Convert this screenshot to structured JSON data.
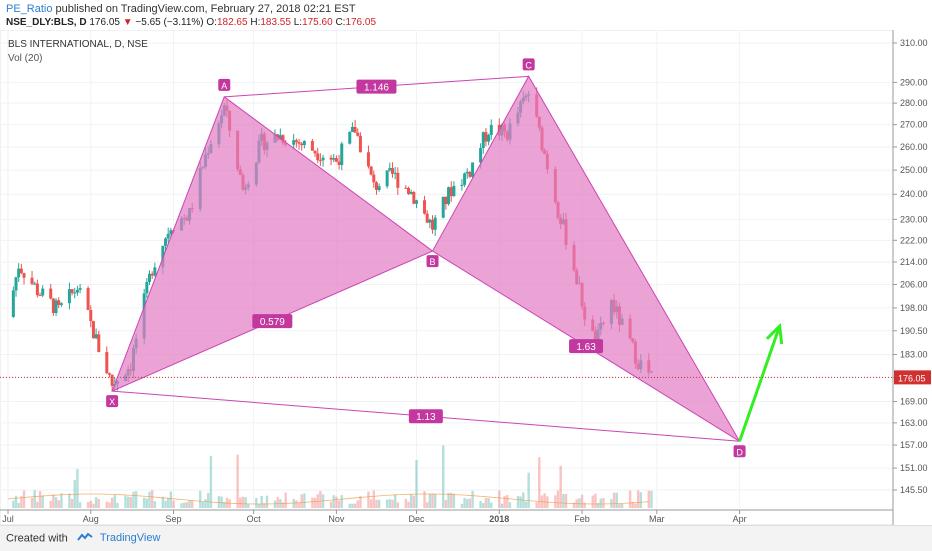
{
  "header": {
    "user": "PE_Ratio",
    "published_text": "published on TradingView.com, February 27, 2018 02:21 EST",
    "symbol": "NSE_DLY:BLS, D",
    "last": "176.05",
    "change": "−5.65 (−3.11%)",
    "o_label": "O:",
    "o_value": "182.65",
    "h_label": "H:",
    "h_value": "183.55",
    "l_label": "L:",
    "l_value": "175.60",
    "c_label": "C:",
    "c_value": "176.05"
  },
  "chart_title": "BLS INTERNATIONAL, D, NSE",
  "volume_label": "Vol (20)",
  "footer": {
    "created_with": "Created with",
    "brand": "TradingView"
  },
  "colors": {
    "up": "#26a69a",
    "down": "#ef5350",
    "pattern_fill": "#e27cc3",
    "pattern_line": "#cc44b4",
    "arrow": "#33ee22",
    "price_line": "#d03030"
  },
  "chart_data": {
    "type": "candlestick",
    "title": "BLS INTERNATIONAL, D, NSE",
    "x_ticks": [
      "Jul",
      "Aug",
      "Sep",
      "Oct",
      "Nov",
      "Dec",
      "2018",
      "Feb",
      "Mar",
      "Apr"
    ],
    "y_ticks": [
      310.0,
      290.0,
      280.0,
      270.0,
      260.0,
      250.0,
      240.0,
      230.0,
      222.0,
      214.0,
      206.0,
      198.0,
      190.5,
      183.0,
      176.0,
      169.0,
      163.0,
      157.0,
      151.0,
      145.5
    ],
    "y_scale": "log",
    "last_price": "176.05",
    "pattern": {
      "points": [
        {
          "label": "X",
          "date": "2017-08-09",
          "price": 172
        },
        {
          "label": "A",
          "date": "2017-09-20",
          "price": 283
        },
        {
          "label": "B",
          "date": "2017-12-07",
          "price": 218
        },
        {
          "label": "C",
          "date": "2018-01-12",
          "price": 293
        },
        {
          "label": "D",
          "date": "2018-04-01",
          "price": 158
        }
      ],
      "ratios": [
        {
          "label": "0.579",
          "between": "X-A-B"
        },
        {
          "label": "1.146",
          "between": "A-B-C"
        },
        {
          "label": "1.63",
          "between": "B-C-D"
        },
        {
          "label": "1.13",
          "between": "X-A-D"
        }
      ]
    },
    "projection": {
      "from": {
        "date": "2018-04-01",
        "price": 158
      },
      "to": {
        "date": "2018-04-16",
        "price": 192
      }
    },
    "price_path": [
      {
        "date": "2017-07-01",
        "price": 195
      },
      {
        "date": "2017-07-05",
        "price": 213
      },
      {
        "date": "2017-07-12",
        "price": 204
      },
      {
        "date": "2017-07-20",
        "price": 197
      },
      {
        "date": "2017-07-27",
        "price": 205
      },
      {
        "date": "2017-08-04",
        "price": 185
      },
      {
        "date": "2017-08-09",
        "price": 174
      },
      {
        "date": "2017-08-16",
        "price": 180
      },
      {
        "date": "2017-08-24",
        "price": 212
      },
      {
        "date": "2017-08-31",
        "price": 228
      },
      {
        "date": "2017-09-07",
        "price": 232
      },
      {
        "date": "2017-09-14",
        "price": 260
      },
      {
        "date": "2017-09-20",
        "price": 278
      },
      {
        "date": "2017-09-27",
        "price": 242
      },
      {
        "date": "2017-10-04",
        "price": 262
      },
      {
        "date": "2017-10-11",
        "price": 265
      },
      {
        "date": "2017-10-18",
        "price": 262
      },
      {
        "date": "2017-10-25",
        "price": 258
      },
      {
        "date": "2017-11-01",
        "price": 254
      },
      {
        "date": "2017-11-08",
        "price": 268
      },
      {
        "date": "2017-11-15",
        "price": 243
      },
      {
        "date": "2017-11-22",
        "price": 248
      },
      {
        "date": "2017-11-29",
        "price": 241
      },
      {
        "date": "2017-12-07",
        "price": 227
      },
      {
        "date": "2017-12-14",
        "price": 242
      },
      {
        "date": "2017-12-21",
        "price": 250
      },
      {
        "date": "2017-12-28",
        "price": 268
      },
      {
        "date": "2018-01-04",
        "price": 266
      },
      {
        "date": "2018-01-12",
        "price": 285
      },
      {
        "date": "2018-01-18",
        "price": 257
      },
      {
        "date": "2018-01-23",
        "price": 234
      },
      {
        "date": "2018-01-28",
        "price": 216
      },
      {
        "date": "2018-02-02",
        "price": 196
      },
      {
        "date": "2018-02-06",
        "price": 186
      },
      {
        "date": "2018-02-12",
        "price": 200
      },
      {
        "date": "2018-02-16",
        "price": 192
      },
      {
        "date": "2018-02-22",
        "price": 181
      },
      {
        "date": "2018-02-27",
        "price": 176
      }
    ]
  }
}
